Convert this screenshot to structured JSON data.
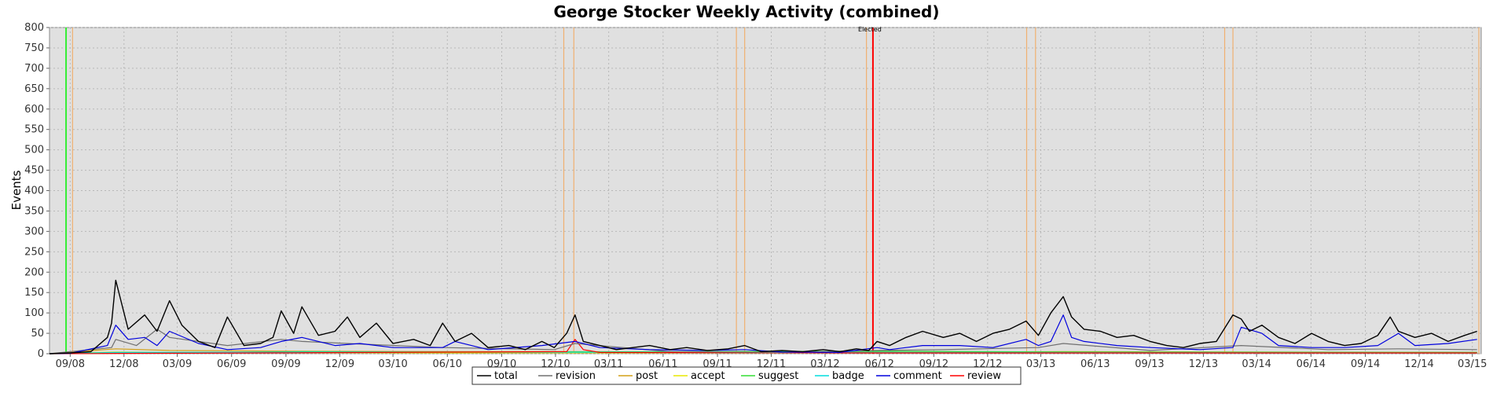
{
  "chart_data": {
    "type": "line",
    "title": "George Stocker Weekly Activity (combined)",
    "xlabel": "",
    "ylabel": "Events",
    "ylim": [
      0,
      800
    ],
    "yticks": [
      0,
      50,
      100,
      150,
      200,
      250,
      300,
      350,
      400,
      450,
      500,
      550,
      600,
      650,
      700,
      750,
      800
    ],
    "xlim": [
      "2008-07-28",
      "2015-03-16"
    ],
    "xtick_labels": [
      {
        "date": "2008-09-01",
        "label": "09/08"
      },
      {
        "date": "2008-12-01",
        "label": "12/08"
      },
      {
        "date": "2009-03-01",
        "label": "03/09"
      },
      {
        "date": "2009-06-01",
        "label": "06/09"
      },
      {
        "date": "2009-09-01",
        "label": "09/09"
      },
      {
        "date": "2009-12-01",
        "label": "12/09"
      },
      {
        "date": "2010-03-01",
        "label": "03/10"
      },
      {
        "date": "2010-06-01",
        "label": "06/10"
      },
      {
        "date": "2010-09-01",
        "label": "09/10"
      },
      {
        "date": "2010-12-01",
        "label": "12/10"
      },
      {
        "date": "2011-03-01",
        "label": "03/11"
      },
      {
        "date": "2011-06-01",
        "label": "06/11"
      },
      {
        "date": "2011-09-01",
        "label": "09/11"
      },
      {
        "date": "2011-12-01",
        "label": "12/11"
      },
      {
        "date": "2012-03-01",
        "label": "03/12"
      },
      {
        "date": "2012-06-01",
        "label": "06/12"
      },
      {
        "date": "2012-09-01",
        "label": "09/12"
      },
      {
        "date": "2012-12-01",
        "label": "12/12"
      },
      {
        "date": "2013-03-01",
        "label": "03/13"
      },
      {
        "date": "2013-06-01",
        "label": "06/13"
      },
      {
        "date": "2013-09-01",
        "label": "09/13"
      },
      {
        "date": "2013-12-01",
        "label": "12/13"
      },
      {
        "date": "2014-03-01",
        "label": "03/14"
      },
      {
        "date": "2014-06-01",
        "label": "06/14"
      },
      {
        "date": "2014-09-01",
        "label": "09/14"
      },
      {
        "date": "2014-12-01",
        "label": "12/14"
      },
      {
        "date": "2015-03-01",
        "label": "03/15"
      }
    ],
    "grid": true,
    "background": "#e0e0e0",
    "legend_position": "bottom-center",
    "series": [
      {
        "name": "total",
        "color": "#000000",
        "x": [
          "2008-07-28",
          "2008-09-01",
          "2008-10-06",
          "2008-11-03",
          "2008-11-10",
          "2008-11-17",
          "2008-12-08",
          "2009-01-05",
          "2009-01-26",
          "2009-02-16",
          "2009-03-09",
          "2009-04-06",
          "2009-05-04",
          "2009-05-25",
          "2009-06-22",
          "2009-07-20",
          "2009-08-10",
          "2009-08-24",
          "2009-09-14",
          "2009-09-28",
          "2009-10-26",
          "2009-11-23",
          "2009-12-14",
          "2010-01-04",
          "2010-02-01",
          "2010-03-01",
          "2010-04-05",
          "2010-05-03",
          "2010-05-24",
          "2010-06-14",
          "2010-07-12",
          "2010-08-09",
          "2010-09-13",
          "2010-10-11",
          "2010-11-08",
          "2010-11-29",
          "2010-12-20",
          "2011-01-03",
          "2011-01-17",
          "2011-02-14",
          "2011-03-14",
          "2011-04-11",
          "2011-05-09",
          "2011-06-13",
          "2011-07-11",
          "2011-08-15",
          "2011-09-19",
          "2011-10-17",
          "2011-11-14",
          "2011-12-19",
          "2012-01-23",
          "2012-02-27",
          "2012-03-26",
          "2012-04-23",
          "2012-05-14",
          "2012-05-28",
          "2012-06-18",
          "2012-07-16",
          "2012-08-13",
          "2012-09-17",
          "2012-10-15",
          "2012-11-12",
          "2012-12-10",
          "2013-01-07",
          "2013-02-04",
          "2013-02-25",
          "2013-03-18",
          "2013-04-08",
          "2013-04-22",
          "2013-05-13",
          "2013-06-10",
          "2013-07-08",
          "2013-08-05",
          "2013-09-02",
          "2013-09-30",
          "2013-10-28",
          "2013-11-25",
          "2013-12-23",
          "2014-01-20",
          "2014-02-03",
          "2014-02-17",
          "2014-03-10",
          "2014-04-07",
          "2014-05-05",
          "2014-06-02",
          "2014-06-30",
          "2014-07-28",
          "2014-08-25",
          "2014-09-22",
          "2014-10-13",
          "2014-10-27",
          "2014-11-24",
          "2014-12-22",
          "2015-01-19",
          "2015-02-16",
          "2015-03-09"
        ],
        "y": [
          0,
          2,
          5,
          40,
          75,
          180,
          60,
          95,
          55,
          130,
          70,
          30,
          15,
          90,
          20,
          25,
          40,
          105,
          50,
          115,
          45,
          55,
          90,
          40,
          75,
          25,
          35,
          20,
          75,
          30,
          50,
          15,
          20,
          10,
          30,
          15,
          50,
          95,
          30,
          20,
          10,
          15,
          20,
          10,
          15,
          8,
          12,
          20,
          5,
          8,
          5,
          10,
          5,
          12,
          8,
          30,
          20,
          40,
          55,
          40,
          50,
          30,
          50,
          60,
          80,
          45,
          100,
          140,
          90,
          60,
          55,
          40,
          45,
          30,
          20,
          15,
          25,
          30,
          95,
          85,
          55,
          70,
          40,
          25,
          50,
          30,
          20,
          25,
          45,
          90,
          55,
          40,
          50,
          30,
          45,
          55
        ]
      },
      {
        "name": "revision",
        "color": "#707070",
        "x": [
          "2008-07-28",
          "2008-11-10",
          "2008-11-17",
          "2008-12-22",
          "2009-01-26",
          "2009-02-16",
          "2009-05-25",
          "2009-08-24",
          "2009-09-28",
          "2009-12-14",
          "2010-05-24",
          "2010-11-29",
          "2011-01-03",
          "2011-06-13",
          "2011-12-19",
          "2012-05-28",
          "2012-09-17",
          "2013-02-25",
          "2013-04-08",
          "2013-09-02",
          "2014-02-03",
          "2014-06-30",
          "2014-10-27",
          "2015-03-09"
        ],
        "y": [
          0,
          15,
          35,
          20,
          60,
          40,
          20,
          35,
          30,
          25,
          15,
          10,
          25,
          5,
          3,
          8,
          10,
          15,
          25,
          8,
          20,
          10,
          12,
          10
        ]
      },
      {
        "name": "post",
        "color": "#d4a017",
        "x": [
          "2008-07-28",
          "2008-11-17",
          "2009-02-16",
          "2009-09-28",
          "2010-06-14",
          "2011-01-03",
          "2012-06-18",
          "2013-04-08",
          "2014-02-17",
          "2015-03-09"
        ],
        "y": [
          0,
          12,
          8,
          6,
          5,
          5,
          3,
          5,
          4,
          3
        ]
      },
      {
        "name": "accept",
        "color": "#e8e800",
        "x": [
          "2008-07-28",
          "2008-11-17",
          "2009-02-16",
          "2010-06-14",
          "2013-04-08",
          "2015-03-09"
        ],
        "y": [
          0,
          4,
          3,
          2,
          3,
          2
        ]
      },
      {
        "name": "suggest",
        "color": "#33dd33",
        "x": [
          "2008-07-28",
          "2009-09-28",
          "2010-06-14",
          "2012-06-18",
          "2013-04-08",
          "2015-03-09"
        ],
        "y": [
          0,
          5,
          4,
          6,
          4,
          3
        ]
      },
      {
        "name": "badge",
        "color": "#00dddd",
        "x": [
          "2008-07-28",
          "2008-11-17",
          "2009-09-28",
          "2012-06-18",
          "2015-03-09"
        ],
        "y": [
          0,
          3,
          4,
          3,
          2
        ]
      },
      {
        "name": "comment",
        "color": "#0000dd",
        "x": [
          "2008-07-28",
          "2008-09-01",
          "2008-11-03",
          "2008-11-17",
          "2008-12-08",
          "2009-01-05",
          "2009-01-26",
          "2009-02-16",
          "2009-04-06",
          "2009-05-25",
          "2009-07-20",
          "2009-08-24",
          "2009-09-28",
          "2009-11-23",
          "2010-01-04",
          "2010-03-01",
          "2010-05-24",
          "2010-06-14",
          "2010-08-09",
          "2010-11-08",
          "2011-01-03",
          "2011-02-14",
          "2011-05-09",
          "2011-08-15",
          "2011-10-17",
          "2011-12-19",
          "2012-03-26",
          "2012-05-28",
          "2012-06-18",
          "2012-08-13",
          "2012-10-15",
          "2012-12-10",
          "2013-02-04",
          "2013-02-25",
          "2013-03-18",
          "2013-04-08",
          "2013-04-22",
          "2013-05-13",
          "2013-07-08",
          "2013-09-02",
          "2013-11-25",
          "2014-01-20",
          "2014-02-03",
          "2014-03-10",
          "2014-04-07",
          "2014-06-02",
          "2014-07-28",
          "2014-09-22",
          "2014-10-27",
          "2014-11-24",
          "2015-01-19",
          "2015-03-09"
        ],
        "y": [
          0,
          1,
          20,
          70,
          35,
          40,
          20,
          55,
          25,
          10,
          15,
          30,
          40,
          20,
          25,
          15,
          15,
          30,
          10,
          20,
          30,
          15,
          10,
          8,
          10,
          4,
          3,
          15,
          10,
          20,
          20,
          15,
          35,
          20,
          30,
          95,
          40,
          30,
          20,
          15,
          10,
          15,
          65,
          50,
          20,
          15,
          15,
          20,
          50,
          20,
          25,
          35
        ]
      },
      {
        "name": "review",
        "color": "#ff0000",
        "x": [
          "2008-07-28",
          "2010-12-20",
          "2011-01-03",
          "2011-01-17",
          "2011-02-14",
          "2012-05-28",
          "2015-03-09"
        ],
        "y": [
          0,
          5,
          35,
          10,
          3,
          2,
          2
        ]
      }
    ],
    "markers": [
      {
        "date": "2008-08-25",
        "color": "#33ee33",
        "label": ""
      },
      {
        "date": "2012-05-21",
        "color": "#ff0000",
        "label": "Elected"
      }
    ],
    "orange_markers": [
      "2008-09-05",
      "2010-12-15",
      "2011-01-01",
      "2011-10-03",
      "2011-10-17",
      "2012-05-10",
      "2013-02-05",
      "2013-02-20",
      "2014-01-06",
      "2014-01-20",
      "2015-03-12"
    ],
    "legend": [
      "total",
      "revision",
      "post",
      "accept",
      "suggest",
      "badge",
      "comment",
      "review"
    ]
  }
}
